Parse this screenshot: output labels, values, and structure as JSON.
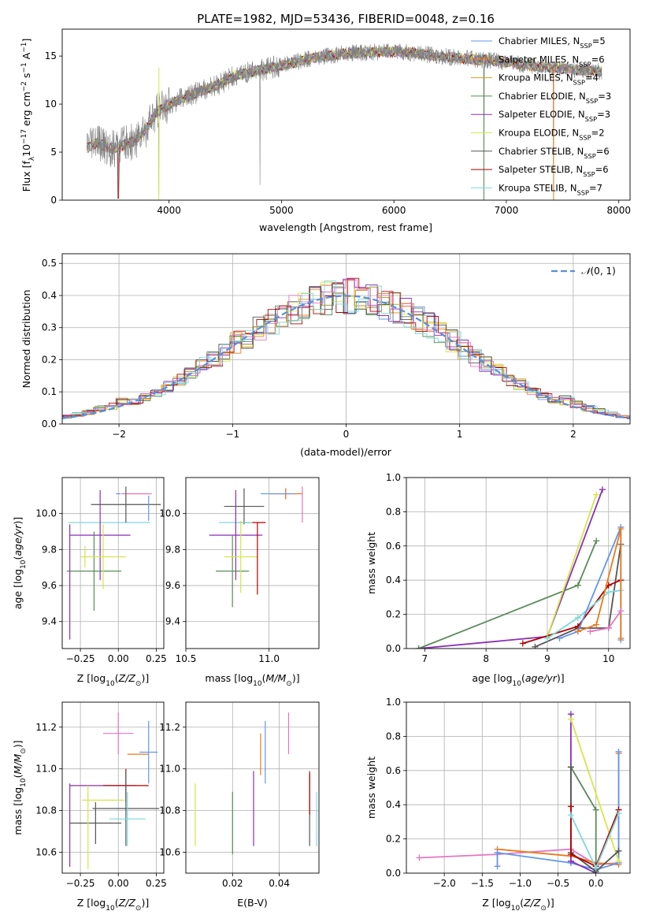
{
  "figure": {
    "title": "PLATE=1982, MJD=53436, FIBERID=0048, z=0.16"
  },
  "colors": [
    "#6495ed",
    "#e87b1e",
    "#d4a017",
    "#5a8a5a",
    "#8b2fb8",
    "#d4e64a",
    "#555555",
    "#b30000",
    "#7fd8d8",
    "#e377c2"
  ],
  "legend_labels": [
    [
      "Chabrier MILES, N",
      "SSP",
      "=5"
    ],
    [
      "Salpeter MILES, N",
      "SSP",
      "=6"
    ],
    [
      "Kroupa MILES, N",
      "SSP",
      "=4"
    ],
    [
      "Chabrier ELODIE, N",
      "SSP",
      "=3"
    ],
    [
      "Salpeter ELODIE, N",
      "SSP",
      "=3"
    ],
    [
      "Kroupa ELODIE, N",
      "SSP",
      "=2"
    ],
    [
      "Chabrier STELIB, N",
      "SSP",
      "=6"
    ],
    [
      "Salpeter STELIB, N",
      "SSP",
      "=6"
    ],
    [
      "Kroupa STELIB, N",
      "SSP",
      "=7"
    ]
  ],
  "chart_data": [
    {
      "id": "spectrum",
      "type": "line",
      "xlabel": "wavelength [Angstrom, rest frame]",
      "ylabel": "Flux [f",
      "xlim": [
        3050,
        8100
      ],
      "ylim": [
        0,
        17.8
      ],
      "xticks": [
        4000,
        5000,
        6000,
        7000,
        8000
      ],
      "yticks": [
        0,
        5,
        10,
        15
      ],
      "data_color": "#808080",
      "model_color": "#7fd8d8",
      "continuum": [
        [
          3270,
          5.4
        ],
        [
          3350,
          6.0
        ],
        [
          3500,
          5.3
        ],
        [
          3700,
          6.2
        ],
        [
          3800,
          7.5
        ],
        [
          3900,
          9.2
        ],
        [
          4000,
          10.0
        ],
        [
          4200,
          11.0
        ],
        [
          4400,
          11.8
        ],
        [
          4600,
          13.0
        ],
        [
          4800,
          13.5
        ],
        [
          5000,
          14.0
        ],
        [
          5200,
          14.6
        ],
        [
          5400,
          15.0
        ],
        [
          5600,
          15.3
        ],
        [
          5800,
          15.4
        ],
        [
          6000,
          15.5
        ],
        [
          6200,
          15.3
        ],
        [
          6400,
          15.0
        ],
        [
          6600,
          14.8
        ],
        [
          6800,
          14.6
        ],
        [
          7000,
          14.4
        ],
        [
          7200,
          14.0
        ],
        [
          7400,
          13.8
        ],
        [
          7600,
          13.6
        ],
        [
          7850,
          13.4
        ]
      ],
      "spikes_data": [
        [
          3550,
          0.3
        ],
        [
          3910,
          0.6
        ],
        [
          4810,
          1.6
        ],
        [
          6800,
          0.2
        ],
        [
          7420,
          0.4
        ]
      ]
    },
    {
      "id": "residuals",
      "type": "histogram",
      "xlabel": "(data-model)/error",
      "ylabel": "Normed distribution",
      "xlim": [
        -2.5,
        2.5
      ],
      "ylim": [
        0,
        0.53
      ],
      "xticks": [
        -2,
        -1,
        0,
        1,
        2
      ],
      "yticks": [
        0,
        0.1,
        0.2,
        0.3,
        0.4,
        0.5
      ],
      "legend": "N(0,1)",
      "bin_width": 0.1
    },
    {
      "id": "z-age",
      "type": "errorbar",
      "xlabel": "Z [log",
      "ylabel": "age  [log",
      "xlim": [
        -0.37,
        0.3
      ],
      "ylim": [
        9.25,
        10.2
      ],
      "xticks": [
        -0.25,
        0.0,
        0.25
      ],
      "xticklabels": [
        "−0.25",
        "0.00",
        "0.25"
      ],
      "yticks": [
        9.4,
        9.6,
        9.8,
        10.0
      ],
      "points": [
        {
          "x": 0.0,
          "y": 10.11,
          "xerr": 0.0,
          "yerr": 0.0,
          "c": 0
        },
        {
          "x": 0.13,
          "y": 10.11,
          "xerr": 0.09,
          "yerr": 0.0,
          "c": 1
        },
        {
          "x": 0.12,
          "y": 10.11,
          "xerr": 0.1,
          "yerr": 0.0,
          "c": 9
        },
        {
          "x": -0.06,
          "y": 9.95,
          "xerr": 0.27,
          "yerr": 0.0,
          "c": 8
        },
        {
          "x": 0.05,
          "y": 10.05,
          "xerr": 0.23,
          "yerr": 0.1,
          "c": 6
        },
        {
          "x": -0.12,
          "y": 9.88,
          "xerr": 0.2,
          "yerr": 0.25,
          "c": 4
        },
        {
          "x": -0.16,
          "y": 9.68,
          "xerr": 0.18,
          "yerr": 0.22,
          "c": 3
        },
        {
          "x": -0.1,
          "y": 9.76,
          "xerr": 0.15,
          "yerr": 0.18,
          "c": 5
        },
        {
          "x": -0.32,
          "y": 9.62,
          "xerr": 0.0,
          "yerr": 0.32,
          "c": 4
        },
        {
          "x": 0.2,
          "y": 10.03,
          "xerr": 0.0,
          "yerr": 0.07,
          "c": 0
        },
        {
          "x": -0.22,
          "y": 9.76,
          "xerr": 0.0,
          "yerr": 0.06,
          "c": 5
        }
      ]
    },
    {
      "id": "mass-age",
      "type": "errorbar",
      "xlabel": "mass [log",
      "ylabel": "",
      "xlim": [
        10.5,
        11.3
      ],
      "ylim": [
        9.25,
        10.2
      ],
      "xticks": [
        10.5,
        11.0
      ],
      "xticklabels": [
        "10.5",
        "11.0"
      ],
      "yticks": [
        9.4,
        9.6,
        9.8,
        10.0
      ],
      "points": [
        {
          "x": 11.1,
          "y": 10.11,
          "xerr": 0.09,
          "yerr": 0.03,
          "c": 9
        },
        {
          "x": 11.1,
          "y": 10.11,
          "xerr": 0.1,
          "yerr": 0.03,
          "c": 1
        },
        {
          "x": 11.05,
          "y": 10.11,
          "xerr": 0.1,
          "yerr": 0.0,
          "c": 0
        },
        {
          "x": 10.85,
          "y": 10.04,
          "xerr": 0.12,
          "yerr": 0.1,
          "c": 6
        },
        {
          "x": 10.9,
          "y": 9.95,
          "xerr": 0.08,
          "yerr": 0.0,
          "c": 7
        },
        {
          "x": 10.8,
          "y": 9.95,
          "xerr": 0.1,
          "yerr": 0.1,
          "c": 8
        },
        {
          "x": 10.8,
          "y": 9.88,
          "xerr": 0.16,
          "yerr": 0.25,
          "c": 4
        },
        {
          "x": 10.78,
          "y": 9.68,
          "xerr": 0.1,
          "yerr": 0.2,
          "c": 3
        },
        {
          "x": 10.83,
          "y": 9.76,
          "xerr": 0.1,
          "yerr": 0.2,
          "c": 5
        },
        {
          "x": 10.93,
          "y": 9.75,
          "xerr": 0.0,
          "yerr": 0.2,
          "c": 7
        },
        {
          "x": 11.2,
          "y": 10.05,
          "xerr": 0.0,
          "yerr": 0.1,
          "c": 9
        }
      ]
    },
    {
      "id": "age-mw",
      "type": "line",
      "xlabel": "age  [log",
      "ylabel": "mass weight",
      "xlim": [
        6.7,
        10.35
      ],
      "ylim": [
        0,
        1.0
      ],
      "xticks": [
        7,
        8,
        9,
        10
      ],
      "yticks": [
        0,
        0.2,
        0.4,
        0.6,
        0.8,
        1.0
      ],
      "series": [
        {
          "c": 4,
          "pts": [
            [
              6.9,
              0.0
            ],
            [
              9.0,
              0.07
            ],
            [
              9.9,
              0.93
            ]
          ]
        },
        {
          "c": 3,
          "pts": [
            [
              6.9,
              0.0
            ],
            [
              9.5,
              0.37
            ],
            [
              9.8,
              0.63
            ]
          ]
        },
        {
          "c": 5,
          "pts": [
            [
              9.0,
              0.07
            ],
            [
              9.8,
              0.9
            ]
          ]
        },
        {
          "c": 6,
          "pts": [
            [
              8.8,
              0.01
            ],
            [
              9.5,
              0.12
            ],
            [
              10.0,
              0.12
            ],
            [
              10.2,
              0.61
            ]
          ]
        },
        {
          "c": 7,
          "pts": [
            [
              8.6,
              0.03
            ],
            [
              9.5,
              0.13
            ],
            [
              10.0,
              0.37
            ],
            [
              10.2,
              0.4
            ]
          ]
        },
        {
          "c": 8,
          "pts": [
            [
              9.0,
              0.06
            ],
            [
              9.5,
              0.18
            ],
            [
              10.0,
              0.33
            ],
            [
              10.2,
              0.34
            ]
          ]
        },
        {
          "c": 0,
          "pts": [
            [
              9.2,
              0.06
            ],
            [
              9.5,
              0.1
            ],
            [
              10.2,
              0.71
            ],
            [
              10.2,
              0.05
            ]
          ]
        },
        {
          "c": 1,
          "pts": [
            [
              9.5,
              0.1
            ],
            [
              9.8,
              0.14
            ],
            [
              10.2,
              0.7
            ],
            [
              10.2,
              0.06
            ]
          ]
        },
        {
          "c": 9,
          "pts": [
            [
              9.7,
              0.1
            ],
            [
              10.0,
              0.12
            ],
            [
              10.2,
              0.22
            ]
          ]
        }
      ]
    },
    {
      "id": "z-mass",
      "type": "errorbar",
      "xlabel": "Z [log",
      "ylabel": "mass [log",
      "xlim": [
        -0.37,
        0.3
      ],
      "ylim": [
        10.5,
        11.32
      ],
      "xticks": [
        -0.25,
        0.0,
        0.25
      ],
      "xticklabels": [
        "−0.25",
        "0.00",
        "0.25"
      ],
      "yticks": [
        10.6,
        10.8,
        11.0,
        11.2
      ],
      "points": [
        {
          "x": 0.0,
          "y": 11.17,
          "xerr": 0.1,
          "yerr": 0.1,
          "c": 9
        },
        {
          "x": 0.2,
          "y": 11.08,
          "xerr": 0.06,
          "yerr": 0.15,
          "c": 0
        },
        {
          "x": 0.13,
          "y": 11.07,
          "xerr": 0.07,
          "yerr": 0.0,
          "c": 1
        },
        {
          "x": -0.1,
          "y": 10.92,
          "xerr": 0.22,
          "yerr": 0.0,
          "c": 4
        },
        {
          "x": 0.05,
          "y": 10.92,
          "xerr": 0.15,
          "yerr": 0.08,
          "c": 7
        },
        {
          "x": 0.05,
          "y": 10.81,
          "xerr": 0.22,
          "yerr": 0.18,
          "c": 6
        },
        {
          "x": -0.1,
          "y": 10.85,
          "xerr": 0.14,
          "yerr": 0.0,
          "c": 5
        },
        {
          "x": -0.15,
          "y": 10.74,
          "xerr": 0.17,
          "yerr": 0.1,
          "c": 6
        },
        {
          "x": 0.06,
          "y": 10.76,
          "xerr": 0.12,
          "yerr": 0.13,
          "c": 8
        },
        {
          "x": -0.32,
          "y": 10.73,
          "xerr": 0.0,
          "yerr": 0.2,
          "c": 4
        },
        {
          "x": -0.2,
          "y": 10.72,
          "xerr": 0.0,
          "yerr": 0.2,
          "c": 5
        }
      ]
    },
    {
      "id": "ebv-mass",
      "type": "errorbar",
      "xlabel": "E(B-V)",
      "ylabel": "",
      "xlim": [
        0.0,
        0.057
      ],
      "ylim": [
        10.5,
        11.32
      ],
      "xticks": [
        0.02,
        0.04
      ],
      "xticklabels": [
        "0.02",
        "0.04"
      ],
      "yticks": [
        10.6,
        10.8,
        11.0,
        11.2
      ],
      "points": [
        {
          "x": 0.004,
          "y": 10.78,
          "xerr": 0.0,
          "yerr": 0.15,
          "c": 5
        },
        {
          "x": 0.02,
          "y": 10.74,
          "xerr": 0.0,
          "yerr": 0.15,
          "c": 3
        },
        {
          "x": 0.029,
          "y": 10.81,
          "xerr": 0.0,
          "yerr": 0.18,
          "c": 4
        },
        {
          "x": 0.032,
          "y": 11.07,
          "xerr": 0.0,
          "yerr": 0.1,
          "c": 1
        },
        {
          "x": 0.034,
          "y": 11.08,
          "xerr": 0.0,
          "yerr": 0.15,
          "c": 0
        },
        {
          "x": 0.044,
          "y": 11.17,
          "xerr": 0.0,
          "yerr": 0.1,
          "c": 9
        },
        {
          "x": 0.053,
          "y": 10.81,
          "xerr": 0.0,
          "yerr": 0.18,
          "c": 6
        },
        {
          "x": 0.053,
          "y": 10.88,
          "xerr": 0.0,
          "yerr": 0.1,
          "c": 7
        },
        {
          "x": 0.056,
          "y": 10.76,
          "xerr": 0.0,
          "yerr": 0.13,
          "c": 8
        }
      ]
    },
    {
      "id": "z-mw",
      "type": "line",
      "xlabel": "Z [log",
      "ylabel": "mass weight",
      "xlim": [
        -2.5,
        0.45
      ],
      "ylim": [
        0,
        1.0
      ],
      "xticks": [
        -2.0,
        -1.5,
        -1.0,
        -0.5,
        0.0
      ],
      "xticklabels": [
        "−2.0",
        "−1.5",
        "−1.0",
        "−0.5",
        "0.0"
      ],
      "yticks": [
        0,
        0.2,
        0.4,
        0.6,
        0.8,
        1.0
      ],
      "series": [
        {
          "c": 9,
          "pts": [
            [
              -2.33,
              0.09
            ],
            [
              -1.3,
              0.11
            ],
            [
              -0.33,
              0.14
            ],
            [
              0.0,
              0.05
            ],
            [
              0.3,
              0.06
            ]
          ]
        },
        {
          "c": 1,
          "pts": [
            [
              -1.3,
              0.14
            ],
            [
              -0.33,
              0.1
            ],
            [
              0.0,
              0.06
            ],
            [
              0.3,
              0.05
            ],
            [
              0.3,
              0.7
            ]
          ]
        },
        {
          "c": 0,
          "pts": [
            [
              -1.3,
              0.04
            ],
            [
              -1.3,
              0.12
            ],
            [
              -0.33,
              0.06
            ],
            [
              0.0,
              0.02
            ],
            [
              0.3,
              0.06
            ],
            [
              0.3,
              0.71
            ]
          ]
        },
        {
          "c": 4,
          "pts": [
            [
              -0.33,
              0.93
            ],
            [
              -0.33,
              0.07
            ],
            [
              0.0,
              0.0
            ]
          ]
        },
        {
          "c": 5,
          "pts": [
            [
              -0.33,
              0.9
            ],
            [
              0.3,
              0.07
            ]
          ]
        },
        {
          "c": 3,
          "pts": [
            [
              -0.33,
              0.62
            ],
            [
              0.0,
              0.37
            ],
            [
              0.0,
              0.0
            ]
          ]
        },
        {
          "c": 6,
          "pts": [
            [
              -0.33,
              0.62
            ],
            [
              -0.33,
              0.12
            ],
            [
              0.0,
              0.01
            ],
            [
              0.3,
              0.13
            ]
          ]
        },
        {
          "c": 7,
          "pts": [
            [
              -0.33,
              0.39
            ],
            [
              -0.33,
              0.11
            ],
            [
              0.0,
              0.04
            ],
            [
              0.3,
              0.37
            ]
          ]
        },
        {
          "c": 8,
          "pts": [
            [
              -0.33,
              0.34
            ],
            [
              0.0,
              0.03
            ],
            [
              0.3,
              0.35
            ]
          ]
        }
      ]
    }
  ]
}
